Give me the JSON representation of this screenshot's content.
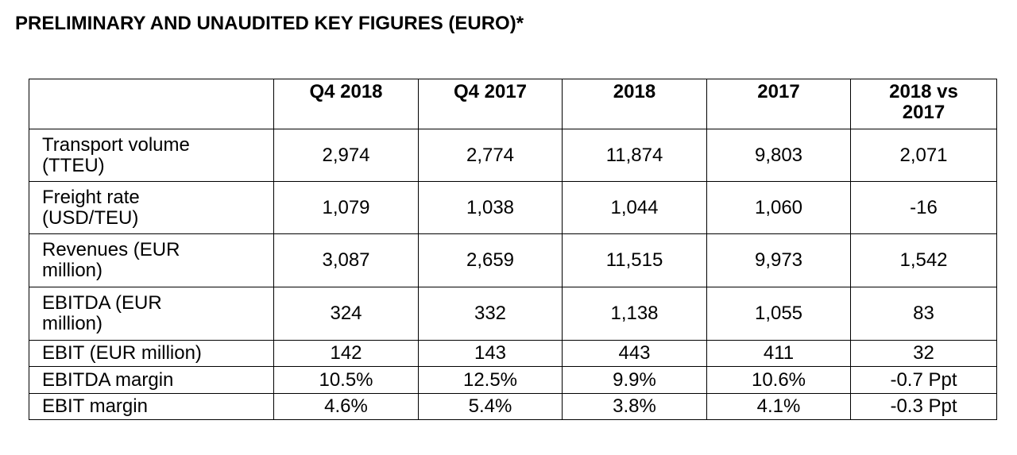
{
  "page": {
    "title": "PRELIMINARY AND UNAUDITED KEY FIGURES (EURO)*"
  },
  "table": {
    "columns": [
      "",
      "Q4 2018",
      "Q4 2017",
      "2018",
      "2017",
      "2018 vs 2017"
    ],
    "column_lines": {
      "c5": [
        "2018 vs",
        "2017"
      ]
    },
    "rows": [
      {
        "label_lines": [
          "Transport volume",
          "(TTEU)"
        ],
        "values": [
          "2,974",
          "2,774",
          "11,874",
          "9,803",
          "2,071"
        ]
      },
      {
        "label_lines": [
          "Freight rate",
          "(USD/TEU)"
        ],
        "values": [
          "1,079",
          "1,038",
          "1,044",
          "1,060",
          "-16"
        ]
      },
      {
        "label_lines": [
          "Revenues (EUR",
          "million)"
        ],
        "values": [
          "3,087",
          "2,659",
          "11,515",
          "9,973",
          "1,542"
        ]
      },
      {
        "label_lines": [
          "EBITDA (EUR",
          "million)"
        ],
        "values": [
          "324",
          "332",
          "1,138",
          "1,055",
          "83"
        ]
      },
      {
        "label_lines": [
          "EBIT (EUR million)"
        ],
        "values": [
          "142",
          "143",
          "443",
          "411",
          "32"
        ]
      },
      {
        "label_lines": [
          "EBITDA margin"
        ],
        "values": [
          "10.5%",
          "12.5%",
          "9.9%",
          "10.6%",
          "-0.7 Ppt"
        ]
      },
      {
        "label_lines": [
          "EBIT margin"
        ],
        "values": [
          "4.6%",
          "5.4%",
          "3.8%",
          "4.1%",
          "-0.3 Ppt"
        ]
      }
    ]
  }
}
